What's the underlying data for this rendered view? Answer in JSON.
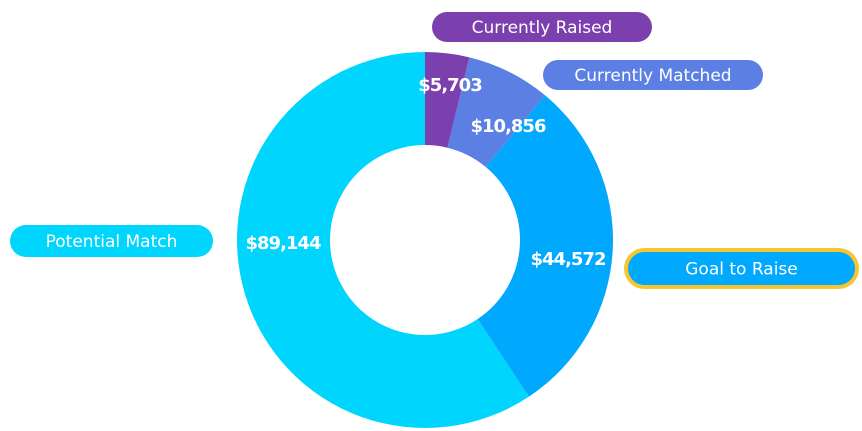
{
  "chart_data": {
    "type": "pie",
    "donut": true,
    "categories": [
      "Currently Raised",
      "Currently Matched",
      "Goal to Raise",
      "Potential Match"
    ],
    "values": [
      5703,
      10856,
      44572,
      89144
    ],
    "value_labels": [
      "$5,703",
      "$10,856",
      "$44,572",
      "$89,144"
    ],
    "colors": [
      "#7c3fae",
      "#5b7fe3",
      "#00a8fe",
      "#00d5fd"
    ],
    "highlighted": "Goal to Raise"
  }
}
